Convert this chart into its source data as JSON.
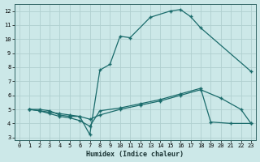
{
  "background_color": "#cce8e8",
  "grid_color": "#b0d0d0",
  "line_color": "#1a6b6b",
  "marker_color": "#1a6b6b",
  "xlabel": "Humidex (Indice chaleur)",
  "xlim": [
    -0.5,
    23.5
  ],
  "ylim": [
    2.8,
    12.5
  ],
  "yticks": [
    3,
    4,
    5,
    6,
    7,
    8,
    9,
    10,
    11,
    12
  ],
  "xticks": [
    0,
    1,
    2,
    3,
    4,
    5,
    6,
    7,
    8,
    9,
    10,
    11,
    12,
    13,
    14,
    15,
    16,
    17,
    18,
    19,
    20,
    21,
    22,
    23
  ],
  "curve1_x": [
    1,
    2,
    3,
    4,
    5,
    6,
    7,
    8,
    9,
    10,
    11,
    13,
    15,
    16,
    17,
    18,
    23
  ],
  "curve1_y": [
    5,
    5,
    4.9,
    4.6,
    4.5,
    4.5,
    3.2,
    7.8,
    8.2,
    10.2,
    10.1,
    11.55,
    12.0,
    12.1,
    11.6,
    10.8,
    7.7
  ],
  "curve2_x": [
    1,
    2,
    3,
    4,
    5,
    6,
    7,
    8,
    10,
    12,
    14,
    16,
    18,
    19,
    21,
    23
  ],
  "curve2_y": [
    5,
    4.9,
    4.7,
    4.5,
    4.4,
    4.2,
    3.8,
    4.9,
    5.1,
    5.4,
    5.7,
    6.1,
    6.5,
    4.1,
    4.0,
    4.0
  ],
  "curve3_x": [
    1,
    2,
    3,
    4,
    5,
    6,
    7,
    8,
    10,
    12,
    14,
    16,
    18,
    20,
    22,
    23
  ],
  "curve3_y": [
    5,
    4.9,
    4.8,
    4.7,
    4.6,
    4.5,
    4.3,
    4.6,
    5.0,
    5.3,
    5.6,
    6.0,
    6.4,
    5.8,
    5.0,
    4.0
  ]
}
